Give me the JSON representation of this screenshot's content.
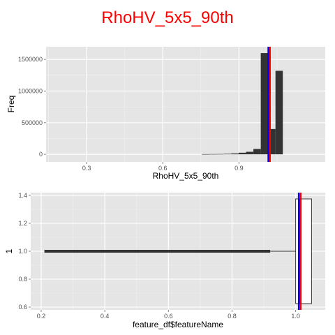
{
  "title": "RhoHV_5x5_90th",
  "colors": {
    "title": "#ff0000",
    "panel": "#e5e5e5",
    "grid_major": "#ffffff",
    "grid_minor": "#f2f2f2",
    "bar": "#333333",
    "tick_text": "#4d4d4d",
    "vline_red": "#ff0000",
    "vline_blue": "#0000ff",
    "box_fill": "#ffffff",
    "box_line": "#333333"
  },
  "chart_data": [
    {
      "type": "bar",
      "subtype": "histogram",
      "xlabel": "RhoHV_5x5_90th",
      "ylabel": "Freq",
      "xlim": [
        0.14,
        1.24
      ],
      "ylim": [
        -120000,
        1700000
      ],
      "x_ticks": [
        0.3,
        0.6,
        0.9
      ],
      "x_tick_labels": [
        "0.3",
        "0.6",
        "0.9"
      ],
      "y_ticks": [
        0,
        500000,
        1000000,
        1500000
      ],
      "y_tick_labels": [
        "0",
        "500000",
        "1000000",
        "1500000"
      ],
      "bin_width": 0.029,
      "bins": [
        {
          "x0": 0.754,
          "x1": 0.783,
          "count": 3000
        },
        {
          "x0": 0.783,
          "x1": 0.812,
          "count": 4000
        },
        {
          "x0": 0.812,
          "x1": 0.841,
          "count": 5000
        },
        {
          "x0": 0.841,
          "x1": 0.87,
          "count": 8000
        },
        {
          "x0": 0.87,
          "x1": 0.899,
          "count": 14000
        },
        {
          "x0": 0.899,
          "x1": 0.928,
          "count": 25000
        },
        {
          "x0": 0.928,
          "x1": 0.957,
          "count": 40000
        },
        {
          "x0": 0.957,
          "x1": 0.986,
          "count": 85000
        },
        {
          "x0": 0.986,
          "x1": 1.015,
          "count": 1600000
        },
        {
          "x0": 1.015,
          "x1": 1.044,
          "count": 400000
        },
        {
          "x0": 1.044,
          "x1": 1.073,
          "count": 1320000
        }
      ],
      "vlines": [
        {
          "x": 1.022,
          "color": "#ff0000"
        },
        {
          "x": 1.016,
          "color": "#0000ff"
        }
      ],
      "grid": true
    },
    {
      "type": "boxplot",
      "orientation": "horizontal",
      "xlabel": "feature_df$featureName",
      "ylabel": "1",
      "xlim": [
        0.167,
        1.093
      ],
      "ylim": [
        0.58,
        1.42
      ],
      "x_ticks": [
        0.2,
        0.4,
        0.6,
        0.8,
        1.0
      ],
      "x_tick_labels": [
        "0.2",
        "0.4",
        "0.6",
        "0.8",
        "1.0"
      ],
      "y_ticks": [
        0.6,
        0.8,
        1.0,
        1.2,
        1.4
      ],
      "y_tick_labels": [
        "0.6",
        "0.8",
        "1.0",
        "1.2",
        "1.4"
      ],
      "box": {
        "y": 1.0,
        "y_low": 0.625,
        "y_high": 1.375,
        "q1": 1.0,
        "median": 1.013,
        "q3": 1.05,
        "whisker_low": 0.92,
        "whisker_high": 1.05
      },
      "outliers": {
        "from": 0.21,
        "to": 0.92,
        "y": 1.0
      },
      "vlines": [
        {
          "x": 1.016,
          "color": "#ff0000"
        },
        {
          "x": 1.01,
          "color": "#0000ff"
        }
      ],
      "grid": true
    }
  ]
}
